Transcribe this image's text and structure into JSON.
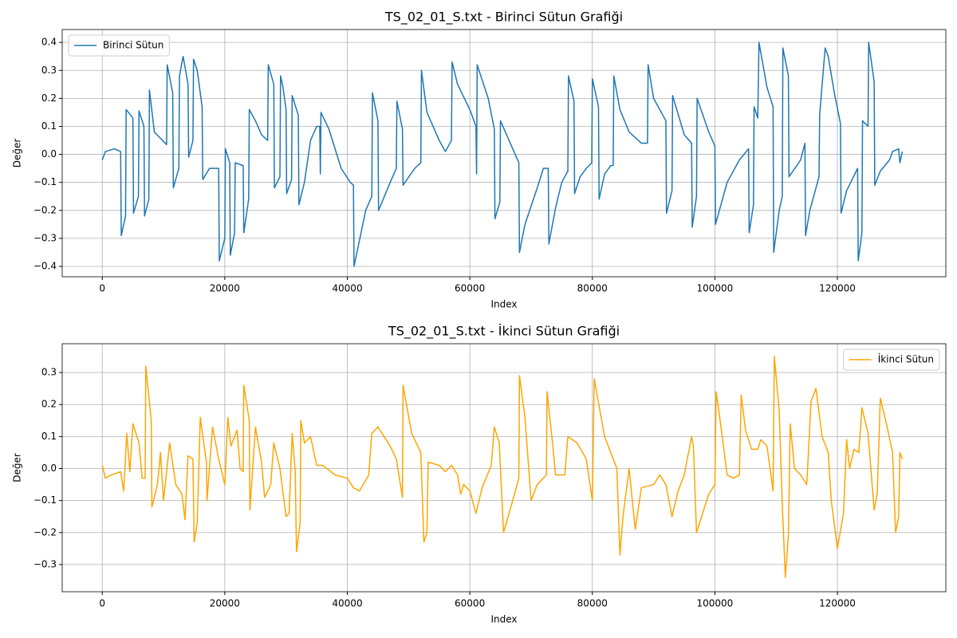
{
  "chart_data": [
    {
      "type": "line",
      "title": "TS_02_01_S.txt - Birinci Sütun Grafiği",
      "xlabel": "Index",
      "ylabel": "Değer",
      "x": [
        0,
        500,
        2000,
        3000,
        3100,
        3800,
        3900,
        5000,
        5100,
        5900,
        6000,
        6800,
        6900,
        7600,
        7700,
        8500,
        10500,
        10600,
        11500,
        11600,
        12500,
        12600,
        13200,
        14000,
        14100,
        14800,
        14900,
        15500,
        16300,
        16400,
        17500,
        19000,
        19100,
        20000,
        20100,
        20800,
        20900,
        21600,
        21700,
        23000,
        23100,
        23900,
        24000,
        25000,
        26000,
        27000,
        27100,
        28000,
        28100,
        29000,
        29100,
        29500,
        30000,
        30100,
        30900,
        31000,
        32000,
        32100,
        33000,
        34000,
        35000,
        35500,
        35600,
        35700,
        37000,
        39000,
        40500,
        41000,
        41100,
        43000,
        44000,
        44100,
        45000,
        45100,
        47000,
        48000,
        48100,
        49000,
        49100,
        51000,
        52000,
        52100,
        53000,
        55000,
        56000,
        57000,
        57100,
        58000,
        60000,
        61000,
        61100,
        61200,
        63000,
        64000,
        64100,
        64900,
        65000,
        67000,
        68000,
        68100,
        69000,
        71000,
        72000,
        72800,
        72900,
        74000,
        75000,
        76000,
        76100,
        77000,
        77100,
        78000,
        79000,
        79900,
        80000,
        81000,
        81100,
        82000,
        83000,
        83400,
        83500,
        84500,
        86000,
        88000,
        89000,
        89100,
        90000,
        92000,
        92100,
        93000,
        93100,
        95000,
        96200,
        96300,
        97000,
        97100,
        99000,
        100000,
        100100,
        102000,
        104000,
        105500,
        105600,
        106300,
        106400,
        107000,
        107200,
        108500,
        109500,
        109600,
        110500,
        111000,
        111100,
        112000,
        112100,
        114000,
        114700,
        114800,
        115500,
        117000,
        117100,
        118000,
        118500,
        119500,
        120500,
        120600,
        121500,
        123300,
        123400,
        124000,
        124100,
        125000,
        125100,
        126000,
        126100,
        127000,
        128500,
        129000,
        130000,
        130200,
        130600
      ],
      "series": [
        {
          "name": "Birinci Sütun",
          "color": "#1f77b4",
          "values": [
            -0.02,
            0.01,
            0.02,
            0.01,
            -0.29,
            -0.22,
            0.16,
            0.13,
            -0.21,
            -0.15,
            0.155,
            0.1,
            -0.22,
            -0.16,
            0.23,
            0.08,
            0.035,
            0.32,
            0.22,
            -0.12,
            -0.05,
            0.28,
            0.35,
            0.25,
            -0.01,
            0.05,
            0.34,
            0.3,
            0.17,
            -0.09,
            -0.05,
            -0.05,
            -0.38,
            -0.3,
            0.02,
            -0.03,
            -0.36,
            -0.28,
            -0.03,
            -0.04,
            -0.28,
            -0.16,
            0.16,
            0.12,
            0.07,
            0.05,
            0.32,
            0.25,
            -0.12,
            -0.08,
            0.28,
            0.24,
            0.16,
            -0.14,
            -0.09,
            0.21,
            0.14,
            -0.18,
            -0.1,
            0.05,
            0.1,
            0.1,
            -0.07,
            0.15,
            0.09,
            -0.05,
            -0.1,
            -0.11,
            -0.4,
            -0.2,
            -0.15,
            0.22,
            0.12,
            -0.2,
            -0.1,
            -0.05,
            0.19,
            0.09,
            -0.11,
            -0.05,
            -0.03,
            0.3,
            0.15,
            0.05,
            0.01,
            0.05,
            0.33,
            0.25,
            0.16,
            0.1,
            -0.07,
            0.32,
            0.2,
            0.09,
            -0.23,
            -0.17,
            0.12,
            0.02,
            -0.03,
            -0.35,
            -0.25,
            -0.12,
            -0.05,
            -0.05,
            -0.32,
            -0.19,
            -0.1,
            -0.06,
            0.28,
            0.19,
            -0.14,
            -0.08,
            -0.05,
            -0.03,
            0.27,
            0.17,
            -0.16,
            -0.07,
            -0.04,
            -0.04,
            0.28,
            0.16,
            0.08,
            0.04,
            0.04,
            0.32,
            0.2,
            0.12,
            -0.21,
            -0.13,
            0.21,
            0.07,
            0.04,
            -0.26,
            -0.15,
            0.2,
            0.08,
            0.03,
            -0.25,
            -0.1,
            -0.02,
            0.02,
            -0.28,
            -0.18,
            0.17,
            0.13,
            0.4,
            0.24,
            0.17,
            -0.35,
            -0.2,
            -0.15,
            0.38,
            0.28,
            -0.08,
            -0.02,
            0.04,
            -0.29,
            -0.2,
            -0.08,
            0.14,
            0.38,
            0.35,
            0.22,
            0.11,
            -0.21,
            -0.13,
            -0.05,
            -0.38,
            -0.28,
            0.12,
            0.1,
            0.4,
            0.26,
            -0.11,
            -0.06,
            -0.02,
            0.01,
            0.02,
            -0.03,
            0.01
          ]
        }
      ],
      "xlim": [
        -6540,
        137700
      ],
      "ylim": [
        -0.437,
        0.446
      ],
      "xticks": [
        0,
        20000,
        40000,
        60000,
        80000,
        100000,
        120000
      ],
      "yticks": [
        {
          "value": -0.4,
          "label": "−0.4"
        },
        {
          "value": -0.3,
          "label": "−0.3"
        },
        {
          "value": -0.2,
          "label": "−0.2"
        },
        {
          "value": -0.1,
          "label": "−0.1"
        },
        {
          "value": 0,
          "label": "0.0"
        },
        0.1,
        0.2,
        0.3,
        0.4
      ],
      "grid": true,
      "legend": "upper left"
    },
    {
      "type": "line",
      "title": "TS_02_01_S.txt - İkinci Sütun Grafiği",
      "xlabel": "Index",
      "ylabel": "Değer",
      "x": [
        0,
        500,
        1500,
        3000,
        3500,
        4000,
        4500,
        5000,
        6000,
        6500,
        7000,
        7100,
        8000,
        8100,
        9000,
        9500,
        10000,
        11000,
        12000,
        13000,
        13500,
        14000,
        14800,
        15000,
        15500,
        16000,
        17000,
        17100,
        18000,
        19000,
        20000,
        20500,
        21000,
        22000,
        22500,
        23000,
        23100,
        24000,
        24100,
        25000,
        26000,
        26500,
        27500,
        28000,
        29000,
        30000,
        30500,
        31000,
        31500,
        31700,
        32300,
        32400,
        33000,
        34000,
        35000,
        36000,
        38000,
        40000,
        41000,
        42000,
        43500,
        44000,
        45000,
        47000,
        48000,
        49000,
        49100,
        50500,
        52000,
        52500,
        53000,
        53200,
        55000,
        56000,
        57000,
        58000,
        58500,
        59000,
        60000,
        61000,
        62000,
        63500,
        64000,
        64800,
        65500,
        67000,
        68000,
        68100,
        69000,
        70000,
        71000,
        72500,
        72600,
        73500,
        74000,
        75500,
        76000,
        77500,
        79000,
        80000,
        80300,
        82000,
        84000,
        84500,
        85000,
        86000,
        87000,
        88000,
        90000,
        91000,
        92000,
        93000,
        94000,
        95000,
        96200,
        96500,
        97000,
        99000,
        100000,
        100200,
        101000,
        102000,
        103000,
        104000,
        104300,
        105000,
        106000,
        107000,
        107500,
        108500,
        109500,
        109700,
        110500,
        111000,
        111500,
        112000,
        112300,
        113000,
        114000,
        115000,
        115700,
        116500,
        117500,
        118500,
        119000,
        120000,
        121000,
        121500,
        122000,
        122700,
        123500,
        124000,
        125000,
        126000,
        126500,
        127000,
        128000,
        129000,
        129500,
        130000,
        130200,
        130600
      ],
      "series": [
        {
          "name": "İkinci Sütun",
          "color": "#ffa500",
          "values": [
            0.01,
            -0.03,
            -0.02,
            -0.01,
            -0.07,
            0.11,
            -0.01,
            0.14,
            0.08,
            -0.03,
            -0.03,
            0.32,
            0.15,
            -0.12,
            -0.05,
            0.05,
            -0.1,
            0.08,
            -0.05,
            -0.08,
            -0.16,
            0.04,
            0.03,
            -0.23,
            -0.17,
            0.16,
            0.02,
            -0.1,
            0.13,
            0.03,
            -0.05,
            0.16,
            0.07,
            0.12,
            0,
            -0.01,
            0.26,
            0.15,
            -0.13,
            0.13,
            0.02,
            -0.09,
            -0.05,
            0.08,
            0,
            -0.15,
            -0.14,
            0.11,
            -0.01,
            -0.26,
            -0.17,
            0.15,
            0.08,
            0.1,
            0.01,
            0.01,
            -0.02,
            -0.03,
            -0.06,
            -0.07,
            -0.02,
            0.11,
            0.13,
            0.07,
            0.03,
            -0.09,
            0.26,
            0.11,
            0.05,
            -0.23,
            -0.2,
            0.02,
            0.01,
            -0.01,
            0.01,
            -0.02,
            -0.08,
            -0.05,
            -0.07,
            -0.14,
            -0.06,
            0.01,
            0.13,
            0.08,
            -0.2,
            -0.1,
            -0.03,
            0.29,
            0.16,
            -0.1,
            -0.05,
            -0.02,
            0.24,
            0.08,
            -0.02,
            -0.02,
            0.1,
            0.08,
            0.03,
            -0.1,
            0.28,
            0.1,
            0,
            -0.27,
            -0.15,
            0,
            -0.19,
            -0.06,
            -0.05,
            -0.02,
            -0.05,
            -0.15,
            -0.07,
            -0.02,
            0.1,
            0.07,
            -0.2,
            -0.08,
            -0.05,
            0.24,
            0.13,
            -0.02,
            -0.03,
            -0.02,
            0.23,
            0.12,
            0.06,
            0.06,
            0.09,
            0.07,
            -0.07,
            0.35,
            0.18,
            -0.11,
            -0.34,
            -0.21,
            0.14,
            0,
            -0.02,
            -0.05,
            0.21,
            0.25,
            0.1,
            0.05,
            -0.1,
            -0.25,
            -0.14,
            0.09,
            0,
            0.06,
            0.05,
            0.19,
            0.11,
            -0.13,
            -0.08,
            0.22,
            0.14,
            0.05,
            -0.2,
            -0.15,
            0.05,
            0.03
          ]
        }
      ],
      "xlim": [
        -6540,
        137700
      ],
      "ylim": [
        -0.385,
        0.39
      ],
      "xticks": [
        0,
        20000,
        40000,
        60000,
        80000,
        100000,
        120000
      ],
      "yticks": [
        {
          "value": -0.3,
          "label": "−0.3"
        },
        {
          "value": -0.2,
          "label": "−0.2"
        },
        {
          "value": -0.1,
          "label": "−0.1"
        },
        {
          "value": 0,
          "label": "0.0"
        },
        0.1,
        0.2,
        0.3
      ],
      "grid": true,
      "legend": "upper right"
    }
  ]
}
